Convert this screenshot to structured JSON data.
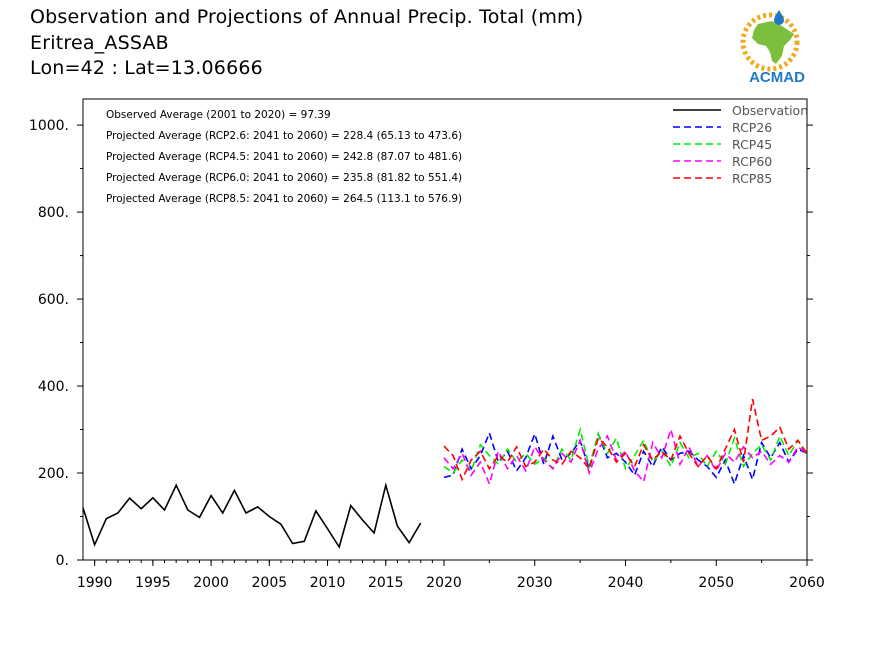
{
  "titles": {
    "line1": "Observation and Projections of Annual Precip. Total (mm)",
    "line2": "Eritrea_ASSAB",
    "line3": "Lon=42 : Lat=13.06666"
  },
  "logo": {
    "text": "ACMAD",
    "colors": {
      "map": "#7cbf3f",
      "sun": "#f2a81d",
      "text": "#1f78c8",
      "drop": "#1f78c8"
    }
  },
  "chart_data": {
    "type": "line",
    "title": "Observation and Projections of Annual Precip. Total (mm)",
    "xlim": [
      1989,
      2060
    ],
    "ylim": [
      0,
      1060
    ],
    "x_ticks_left": [
      1990,
      1995,
      2000,
      2005,
      2010,
      2015,
      2020
    ],
    "x_ticks_right": [
      2030,
      2040,
      2050,
      2060
    ],
    "y_ticks": [
      0,
      200,
      400,
      600,
      800,
      1000
    ],
    "y_tick_labels": [
      "0.",
      "200.",
      "400.",
      "600.",
      "800.",
      "1000."
    ],
    "annotations": [
      "Observed Average (2001 to 2020) = 97.39",
      "Projected Average (RCP2.6: 2041 to 2060) = 228.4 (65.13 to 473.6)",
      "Projected Average (RCP4.5: 2041 to 2060) = 242.8 (87.07 to 481.6)",
      "Projected Average (RCP6.0: 2041 to 2060) = 235.8 (81.82 to 551.4)",
      "Projected Average (RCP8.5: 2041 to 2060) = 264.5 (113.1 to 576.9)"
    ],
    "legend_position": "top-right",
    "series": [
      {
        "name": "Observation",
        "color": "#000000",
        "dash": "solid",
        "x": [
          1989,
          1990,
          1991,
          1992,
          1993,
          1994,
          1995,
          1996,
          1997,
          1998,
          1999,
          2000,
          2001,
          2002,
          2003,
          2004,
          2005,
          2006,
          2007,
          2008,
          2009,
          2010,
          2011,
          2012,
          2013,
          2014,
          2015,
          2016,
          2017,
          2018,
          2019,
          2020
        ],
        "values": [
          120,
          35,
          95,
          108,
          142,
          118,
          143,
          115,
          172,
          115,
          98,
          148,
          108,
          160,
          108,
          122,
          100,
          82,
          38,
          43,
          113,
          72,
          30,
          125,
          92,
          62,
          172,
          78,
          40,
          85,
          null,
          null
        ]
      },
      {
        "name": "RCP26",
        "color": "#0000ff",
        "dash": "dashed",
        "x": [
          2020,
          2021,
          2022,
          2023,
          2024,
          2025,
          2026,
          2027,
          2028,
          2029,
          2030,
          2031,
          2032,
          2033,
          2034,
          2035,
          2036,
          2037,
          2038,
          2039,
          2040,
          2041,
          2042,
          2043,
          2044,
          2045,
          2046,
          2047,
          2048,
          2049,
          2050,
          2051,
          2052,
          2053,
          2054,
          2055,
          2056,
          2057,
          2058,
          2059,
          2060
        ],
        "values": [
          190,
          195,
          255,
          210,
          240,
          292,
          225,
          250,
          205,
          235,
          290,
          220,
          285,
          230,
          245,
          275,
          210,
          290,
          235,
          245,
          225,
          195,
          250,
          215,
          260,
          230,
          245,
          250,
          230,
          215,
          190,
          230,
          175,
          240,
          185,
          270,
          235,
          270,
          225,
          255,
          245
        ]
      },
      {
        "name": "RCP45",
        "color": "#00ee00",
        "dash": "dashed",
        "x": [
          2020,
          2021,
          2022,
          2023,
          2024,
          2025,
          2026,
          2027,
          2028,
          2029,
          2030,
          2031,
          2032,
          2033,
          2034,
          2035,
          2036,
          2037,
          2038,
          2039,
          2040,
          2041,
          2042,
          2043,
          2044,
          2045,
          2046,
          2047,
          2048,
          2049,
          2050,
          2051,
          2052,
          2053,
          2054,
          2055,
          2056,
          2057,
          2058,
          2059,
          2060
        ],
        "values": [
          215,
          200,
          230,
          205,
          265,
          240,
          220,
          255,
          225,
          245,
          220,
          235,
          210,
          255,
          230,
          300,
          215,
          290,
          245,
          280,
          210,
          240,
          275,
          225,
          250,
          215,
          270,
          235,
          245,
          215,
          250,
          220,
          280,
          215,
          245,
          265,
          230,
          285,
          240,
          275,
          240
        ]
      },
      {
        "name": "RCP60",
        "color": "#ff00ff",
        "dash": "dashed",
        "x": [
          2020,
          2021,
          2022,
          2023,
          2024,
          2025,
          2026,
          2027,
          2028,
          2029,
          2030,
          2031,
          2032,
          2033,
          2034,
          2035,
          2036,
          2037,
          2038,
          2039,
          2040,
          2041,
          2042,
          2043,
          2044,
          2045,
          2046,
          2047,
          2048,
          2049,
          2050,
          2051,
          2052,
          2053,
          2054,
          2055,
          2056,
          2057,
          2058,
          2059,
          2060
        ],
        "values": [
          235,
          210,
          245,
          195,
          225,
          175,
          250,
          210,
          240,
          205,
          260,
          230,
          210,
          245,
          225,
          275,
          200,
          255,
          285,
          230,
          250,
          205,
          180,
          270,
          235,
          300,
          220,
          260,
          215,
          240,
          205,
          245,
          225,
          260,
          235,
          250,
          220,
          240,
          225,
          260,
          245
        ]
      },
      {
        "name": "RCP85",
        "color": "#ff0000",
        "dash": "dashed",
        "x": [
          2020,
          2021,
          2022,
          2023,
          2024,
          2025,
          2026,
          2027,
          2028,
          2029,
          2030,
          2031,
          2032,
          2033,
          2034,
          2035,
          2036,
          2037,
          2038,
          2039,
          2040,
          2041,
          2042,
          2043,
          2044,
          2045,
          2046,
          2047,
          2048,
          2049,
          2050,
          2051,
          2052,
          2053,
          2054,
          2055,
          2056,
          2057,
          2058,
          2059,
          2060
        ],
        "values": [
          262,
          240,
          185,
          230,
          250,
          210,
          240,
          225,
          260,
          215,
          225,
          255,
          230,
          220,
          250,
          235,
          210,
          280,
          260,
          225,
          245,
          215,
          265,
          230,
          250,
          230,
          285,
          245,
          215,
          240,
          210,
          255,
          300,
          225,
          370,
          275,
          285,
          305,
          255,
          275,
          245
        ]
      }
    ]
  }
}
